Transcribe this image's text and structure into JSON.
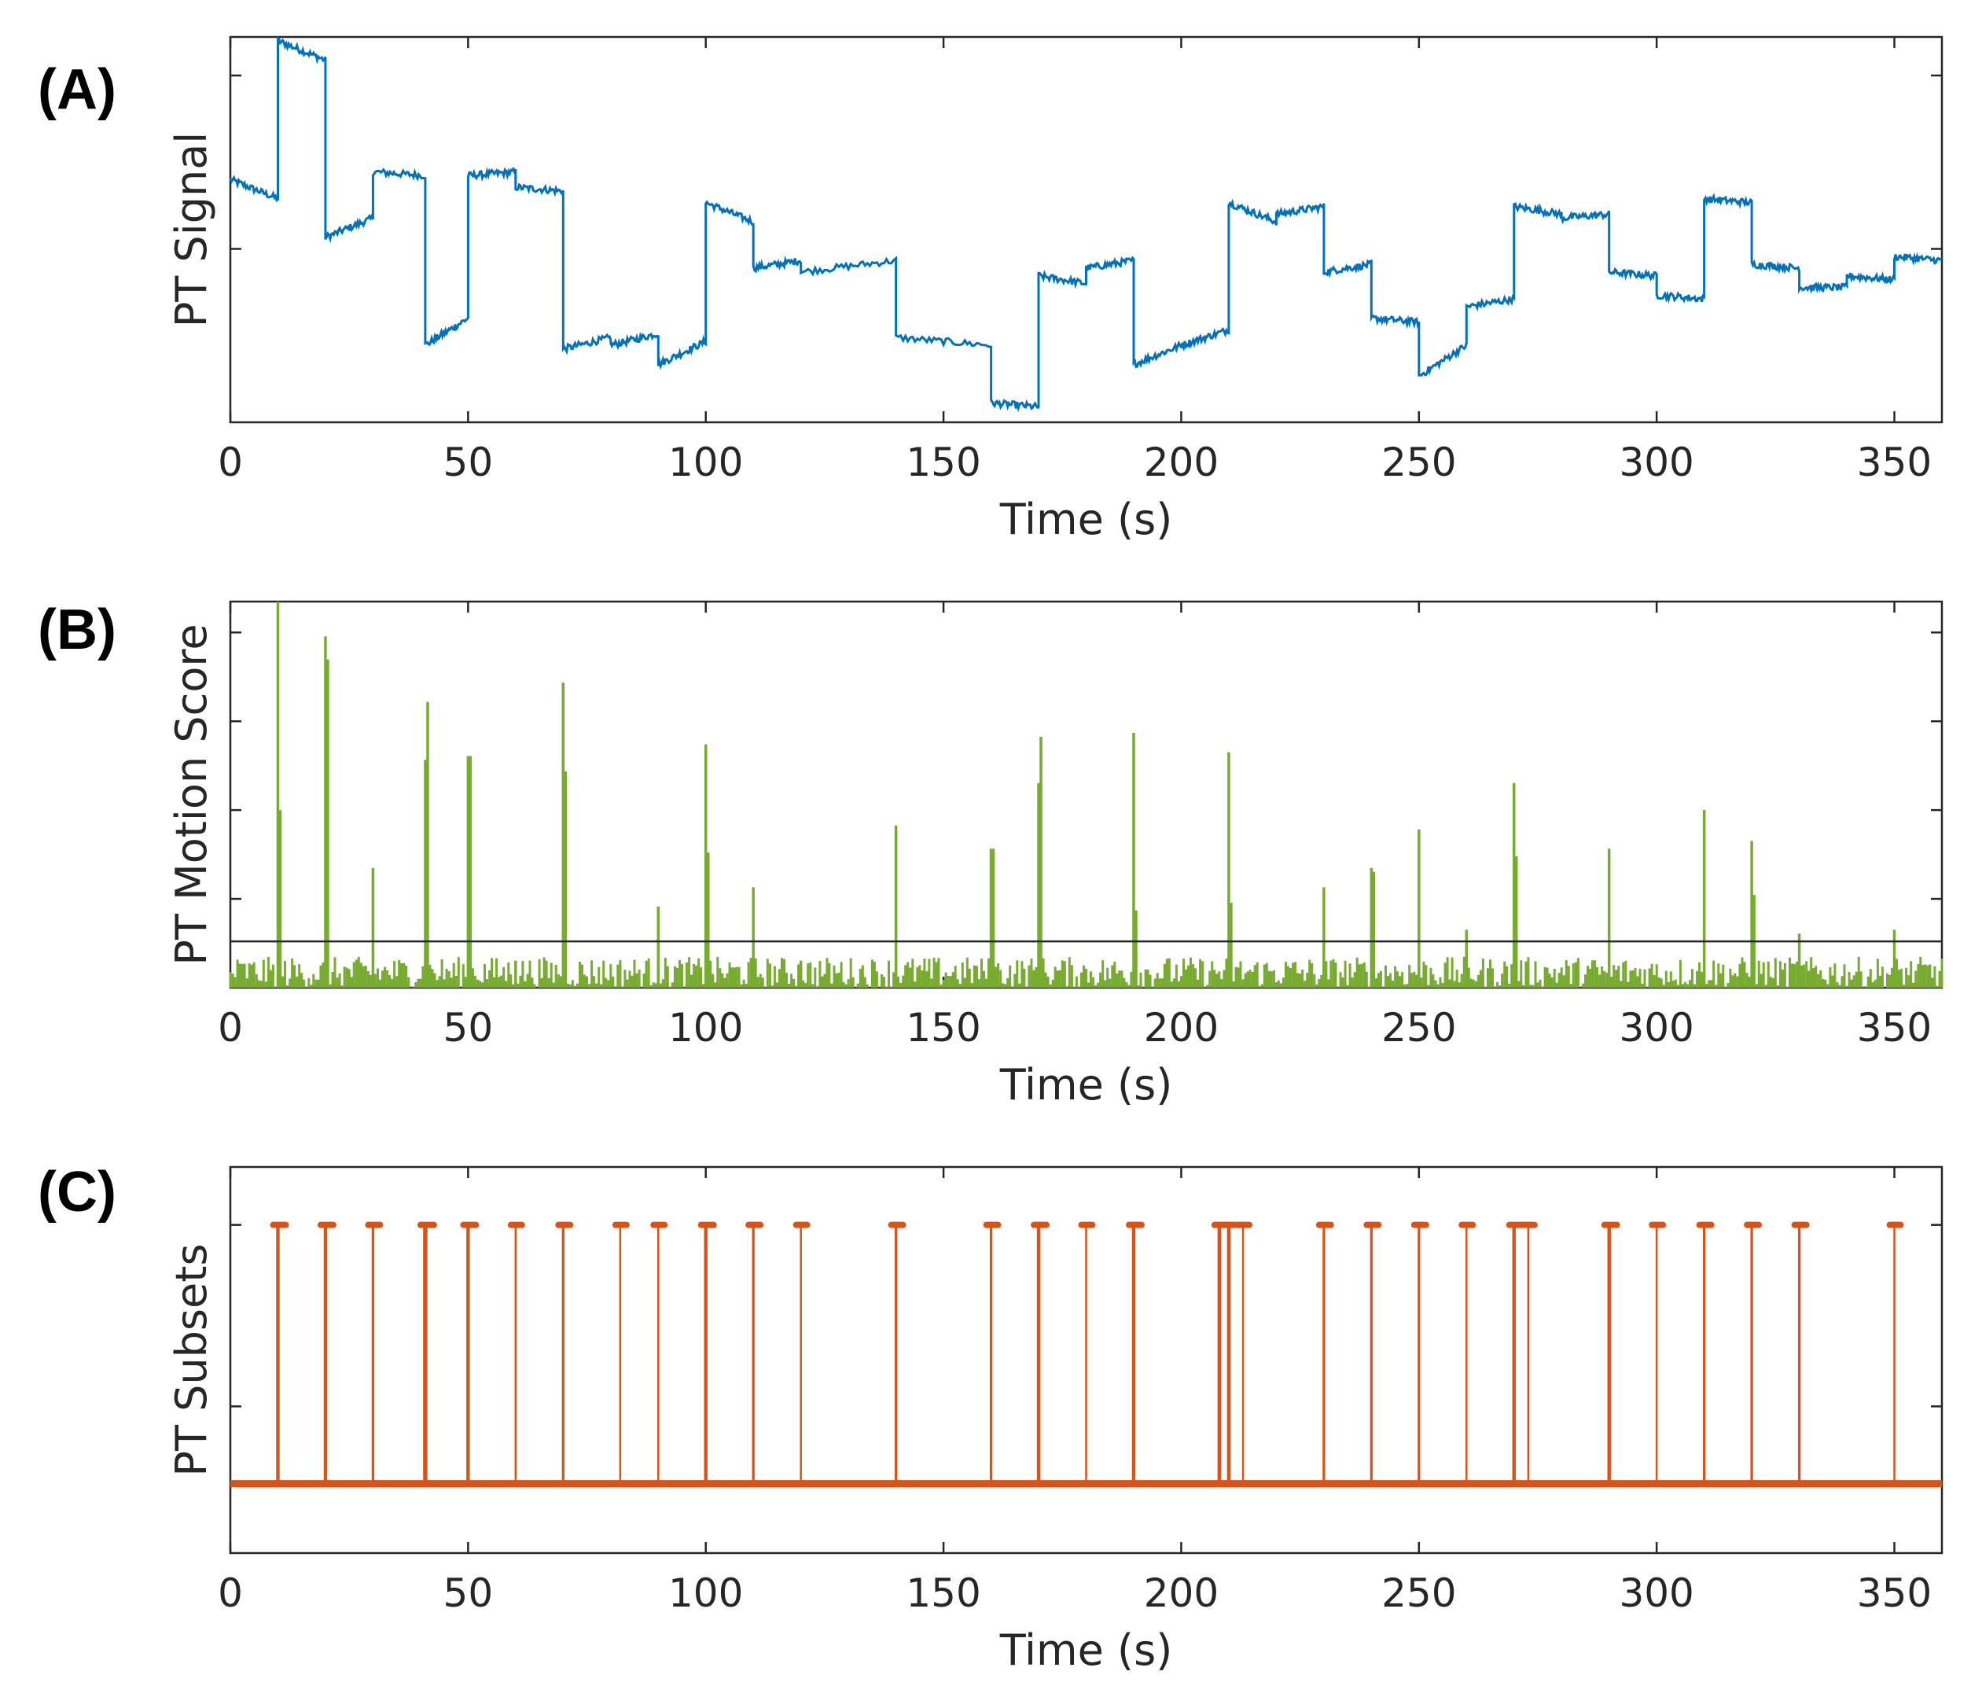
{
  "colors": {
    "signal": "#0072BD",
    "score": "#77AC30",
    "subsets": "#D95319",
    "axis": "#262626",
    "threshold": "#262626"
  },
  "chart_data": [
    {
      "panel": "(A)",
      "type": "line",
      "title": "",
      "xlabel": "Time (s)",
      "ylabel": "PT Signal",
      "xlim": [
        0,
        360
      ],
      "ylim": [
        0,
        1
      ],
      "x_ticks": [
        "0",
        "50",
        "100",
        "150",
        "200",
        "250",
        "300",
        "350"
      ],
      "y_tick_values": [
        0.45,
        0.9
      ],
      "y_tick_labels_shown": false,
      "series": [
        {
          "name": "PT Signal",
          "note": "piecewise step levels with ramps (approximate, normalized)",
          "segments": [
            {
              "t0": 0,
              "t1": 10,
              "v0": 0.63,
              "v1": 0.58
            },
            {
              "t0": 10,
              "t1": 20,
              "v0": 0.99,
              "v1": 0.94
            },
            {
              "t0": 20,
              "t1": 30,
              "v0": 0.48,
              "v1": 0.53
            },
            {
              "t0": 30,
              "t1": 41,
              "v0": 0.65,
              "v1": 0.64
            },
            {
              "t0": 41,
              "t1": 50,
              "v0": 0.2,
              "v1": 0.27
            },
            {
              "t0": 50,
              "t1": 60,
              "v0": 0.64,
              "v1": 0.65
            },
            {
              "t0": 60,
              "t1": 70,
              "v0": 0.61,
              "v1": 0.6
            },
            {
              "t0": 70,
              "t1": 80,
              "v0": 0.19,
              "v1": 0.22
            },
            {
              "t0": 80,
              "t1": 90,
              "v0": 0.2,
              "v1": 0.23
            },
            {
              "t0": 90,
              "t1": 100,
              "v0": 0.15,
              "v1": 0.21
            },
            {
              "t0": 100,
              "t1": 110,
              "v0": 0.57,
              "v1": 0.52
            },
            {
              "t0": 110,
              "t1": 120,
              "v0": 0.4,
              "v1": 0.42
            },
            {
              "t0": 120,
              "t1": 140,
              "v0": 0.39,
              "v1": 0.42
            },
            {
              "t0": 140,
              "t1": 160,
              "v0": 0.22,
              "v1": 0.2
            },
            {
              "t0": 160,
              "t1": 170,
              "v0": 0.05,
              "v1": 0.04
            },
            {
              "t0": 170,
              "t1": 180,
              "v0": 0.38,
              "v1": 0.36
            },
            {
              "t0": 180,
              "t1": 190,
              "v0": 0.4,
              "v1": 0.42
            },
            {
              "t0": 190,
              "t1": 200,
              "v0": 0.15,
              "v1": 0.2
            },
            {
              "t0": 200,
              "t1": 210,
              "v0": 0.2,
              "v1": 0.24
            },
            {
              "t0": 210,
              "t1": 220,
              "v0": 0.57,
              "v1": 0.52
            },
            {
              "t0": 220,
              "t1": 230,
              "v0": 0.54,
              "v1": 0.56
            },
            {
              "t0": 230,
              "t1": 240,
              "v0": 0.39,
              "v1": 0.41
            },
            {
              "t0": 240,
              "t1": 250,
              "v0": 0.27,
              "v1": 0.26
            },
            {
              "t0": 250,
              "t1": 260,
              "v0": 0.12,
              "v1": 0.2
            },
            {
              "t0": 260,
              "t1": 270,
              "v0": 0.3,
              "v1": 0.32
            },
            {
              "t0": 270,
              "t1": 280,
              "v0": 0.56,
              "v1": 0.54
            },
            {
              "t0": 280,
              "t1": 290,
              "v0": 0.53,
              "v1": 0.54
            },
            {
              "t0": 290,
              "t1": 300,
              "v0": 0.39,
              "v1": 0.38
            },
            {
              "t0": 300,
              "t1": 310,
              "v0": 0.33,
              "v1": 0.32
            },
            {
              "t0": 310,
              "t1": 320,
              "v0": 0.58,
              "v1": 0.57
            },
            {
              "t0": 320,
              "t1": 330,
              "v0": 0.41,
              "v1": 0.4
            },
            {
              "t0": 330,
              "t1": 340,
              "v0": 0.35,
              "v1": 0.35
            },
            {
              "t0": 340,
              "t1": 350,
              "v0": 0.38,
              "v1": 0.37
            },
            {
              "t0": 350,
              "t1": 360,
              "v0": 0.43,
              "v1": 0.42
            }
          ]
        }
      ]
    },
    {
      "panel": "(B)",
      "type": "line",
      "title": "",
      "xlabel": "Time (s)",
      "ylabel": "PT Motion Score",
      "xlim": [
        0,
        360
      ],
      "ylim": [
        0,
        1
      ],
      "x_ticks": [
        "0",
        "50",
        "100",
        "150",
        "200",
        "250",
        "300",
        "350"
      ],
      "y_tick_values": [
        0.23,
        0.46,
        0.69,
        0.92
      ],
      "y_tick_labels_shown": false,
      "threshold": 0.12,
      "baseline_noise_max": 0.08,
      "series": [
        {
          "name": "PT Motion Score",
          "spikes": [
            {
              "t": 10,
              "v": 1.0
            },
            {
              "t": 10.5,
              "v": 0.46
            },
            {
              "t": 20,
              "v": 0.91
            },
            {
              "t": 20.5,
              "v": 0.85
            },
            {
              "t": 30,
              "v": 0.31
            },
            {
              "t": 41,
              "v": 0.59
            },
            {
              "t": 41.5,
              "v": 0.74
            },
            {
              "t": 50,
              "v": 0.6
            },
            {
              "t": 50.5,
              "v": 0.6
            },
            {
              "t": 60,
              "v": 0.07
            },
            {
              "t": 70,
              "v": 0.79
            },
            {
              "t": 70.5,
              "v": 0.56
            },
            {
              "t": 90,
              "v": 0.21
            },
            {
              "t": 100,
              "v": 0.63
            },
            {
              "t": 100.5,
              "v": 0.35
            },
            {
              "t": 110,
              "v": 0.26
            },
            {
              "t": 120,
              "v": 0.07
            },
            {
              "t": 140,
              "v": 0.42
            },
            {
              "t": 160,
              "v": 0.36
            },
            {
              "t": 160.5,
              "v": 0.36
            },
            {
              "t": 170,
              "v": 0.53
            },
            {
              "t": 170.5,
              "v": 0.65
            },
            {
              "t": 190,
              "v": 0.66
            },
            {
              "t": 190.5,
              "v": 0.2
            },
            {
              "t": 210,
              "v": 0.61
            },
            {
              "t": 210.5,
              "v": 0.22
            },
            {
              "t": 230,
              "v": 0.26
            },
            {
              "t": 240,
              "v": 0.31
            },
            {
              "t": 240.5,
              "v": 0.3
            },
            {
              "t": 250,
              "v": 0.41
            },
            {
              "t": 260,
              "v": 0.15
            },
            {
              "t": 270,
              "v": 0.53
            },
            {
              "t": 270.5,
              "v": 0.34
            },
            {
              "t": 290,
              "v": 0.36
            },
            {
              "t": 310,
              "v": 0.46
            },
            {
              "t": 320,
              "v": 0.38
            },
            {
              "t": 320.5,
              "v": 0.24
            },
            {
              "t": 330,
              "v": 0.14
            },
            {
              "t": 350,
              "v": 0.15
            }
          ]
        }
      ]
    },
    {
      "panel": "(C)",
      "type": "line",
      "title": "",
      "xlabel": "Time (s)",
      "ylabel": "PT Subsets",
      "xlim": [
        0,
        360
      ],
      "ylim": [
        0,
        1
      ],
      "x_ticks": [
        "0",
        "50",
        "100",
        "150",
        "200",
        "250",
        "300",
        "350"
      ],
      "y_tick_values": [
        0.38,
        0.85
      ],
      "y_tick_labels_shown": false,
      "baseline": 0.18,
      "top_level": 0.85,
      "series": [
        {
          "name": "PT Subsets",
          "pulses": [
            {
              "t": 10,
              "w": 2
            },
            {
              "t": 20,
              "w": 2
            },
            {
              "t": 30,
              "w": 1.5
            },
            {
              "t": 41,
              "w": 2.5
            },
            {
              "t": 50,
              "w": 2
            },
            {
              "t": 60,
              "w": 1
            },
            {
              "t": 70,
              "w": 1.5
            },
            {
              "t": 82,
              "w": 1
            },
            {
              "t": 90,
              "w": 1
            },
            {
              "t": 100,
              "w": 2
            },
            {
              "t": 110,
              "w": 1.5
            },
            {
              "t": 120,
              "w": 1
            },
            {
              "t": 140,
              "w": 1.5
            },
            {
              "t": 160,
              "w": 1.5
            },
            {
              "t": 170,
              "w": 2
            },
            {
              "t": 180,
              "w": 1
            },
            {
              "t": 190,
              "w": 2
            },
            {
              "t": 208,
              "w": 2
            },
            {
              "t": 210,
              "w": 2
            },
            {
              "t": 213,
              "w": 1
            },
            {
              "t": 230,
              "w": 1.5
            },
            {
              "t": 240,
              "w": 1.5
            },
            {
              "t": 250,
              "w": 1.5
            },
            {
              "t": 260,
              "w": 1
            },
            {
              "t": 270,
              "w": 2
            },
            {
              "t": 273,
              "w": 1
            },
            {
              "t": 290,
              "w": 2
            },
            {
              "t": 300,
              "w": 1
            },
            {
              "t": 310,
              "w": 1.5
            },
            {
              "t": 320,
              "w": 1.5
            },
            {
              "t": 330,
              "w": 1.5
            },
            {
              "t": 350,
              "w": 1
            }
          ]
        }
      ]
    }
  ]
}
